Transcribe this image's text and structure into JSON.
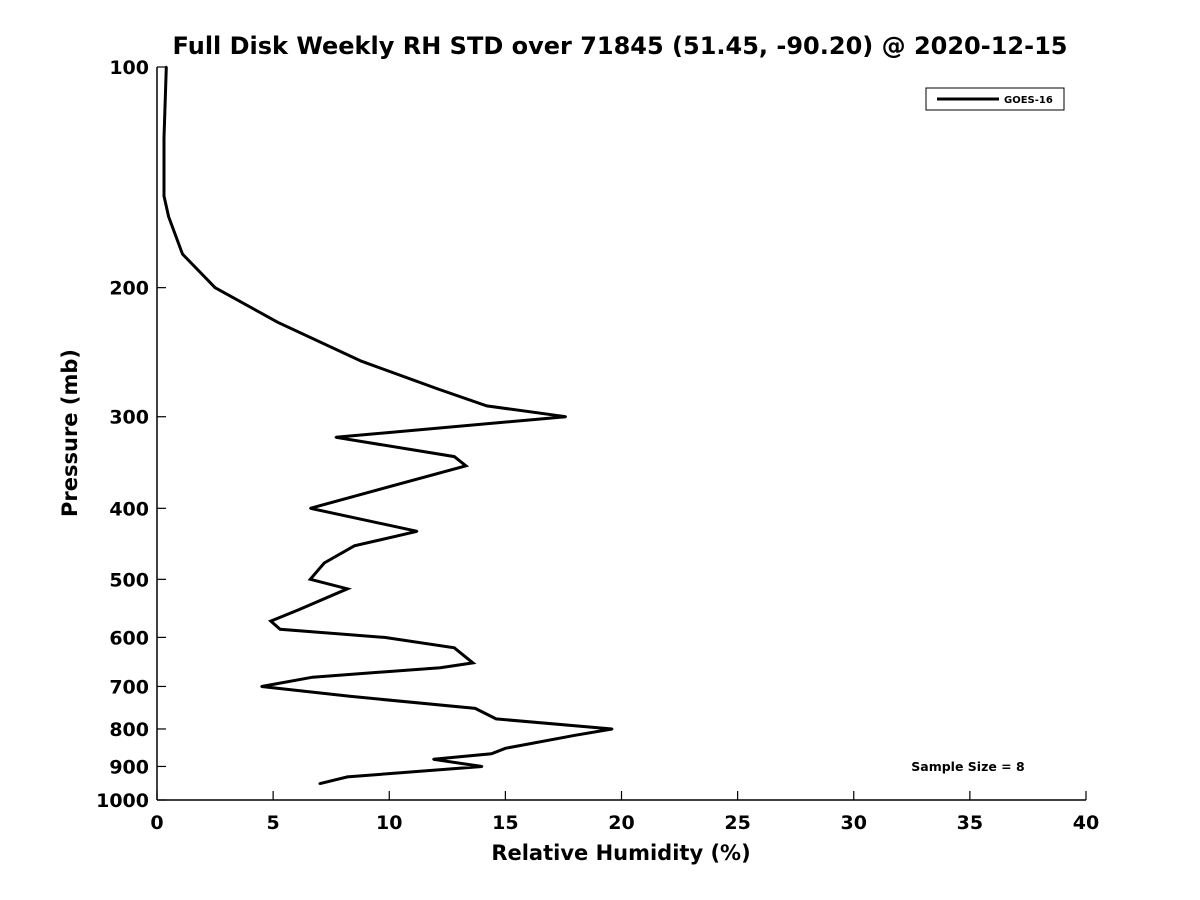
{
  "chart_data": {
    "type": "line",
    "title": "Full Disk Weekly RH STD over 71845 (51.45, -90.20) @ 2020-12-15",
    "xlabel": "Relative Humidity (%)",
    "ylabel": "Pressure (mb)",
    "xlim": [
      0,
      40
    ],
    "ylim": [
      100,
      1000
    ],
    "y_scale": "log",
    "y_reversed": true,
    "x_ticks": [
      0,
      5,
      10,
      15,
      20,
      25,
      30,
      35,
      40
    ],
    "y_ticks": [
      100,
      200,
      300,
      400,
      500,
      600,
      700,
      800,
      900,
      1000
    ],
    "grid": false,
    "legend_position": "top-right",
    "series": [
      {
        "name": "GOES-16",
        "color": "#000000",
        "points": [
          [
            0.4,
            100
          ],
          [
            0.3,
            125
          ],
          [
            0.3,
            150
          ],
          [
            0.5,
            160
          ],
          [
            1.1,
            180
          ],
          [
            2.5,
            200
          ],
          [
            5.2,
            223
          ],
          [
            8.8,
            252
          ],
          [
            12.1,
            275
          ],
          [
            14.2,
            290
          ],
          [
            17.6,
            300
          ],
          [
            7.7,
            320
          ],
          [
            12.8,
            340
          ],
          [
            13.3,
            350
          ],
          [
            6.6,
            400
          ],
          [
            11.2,
            430
          ],
          [
            8.5,
            450
          ],
          [
            7.2,
            475
          ],
          [
            6.6,
            500
          ],
          [
            8.2,
            515
          ],
          [
            6.1,
            550
          ],
          [
            4.9,
            570
          ],
          [
            5.3,
            585
          ],
          [
            9.8,
            600
          ],
          [
            12.8,
            620
          ],
          [
            13.6,
            650
          ],
          [
            12.2,
            660
          ],
          [
            6.7,
            680
          ],
          [
            4.5,
            700
          ],
          [
            8.3,
            722
          ],
          [
            13.7,
            750
          ],
          [
            14.6,
            775
          ],
          [
            19.6,
            800
          ],
          [
            18.0,
            816
          ],
          [
            15.0,
            850
          ],
          [
            14.4,
            865
          ],
          [
            11.9,
            880
          ],
          [
            14.0,
            900
          ],
          [
            8.2,
            930
          ],
          [
            7.0,
            950
          ]
        ]
      }
    ],
    "annotations": [
      "Sample Size = 8"
    ]
  },
  "colors": {
    "background": "#ffffff",
    "axes": "#000000",
    "line": "#000000"
  }
}
